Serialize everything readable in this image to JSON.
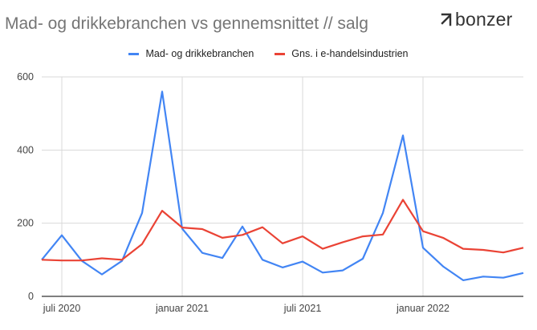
{
  "header": {
    "title": "Mad- og drikkebranchen vs gennemsnittet // salg",
    "logo_text": "bonzer"
  },
  "colors": {
    "series_1": "#4285f4",
    "series_2": "#ea4335",
    "grid": "#d9d9d9",
    "axis": "#333333"
  },
  "chart_data": {
    "type": "line",
    "title": "Mad- og drikkebranchen vs gennemsnittet // salg",
    "xlabel": "",
    "ylabel": "",
    "ylim": [
      0,
      600
    ],
    "yticks": [
      0,
      200,
      400,
      600
    ],
    "ytick_labels": [
      "0",
      "200",
      "400",
      "600"
    ],
    "xticks": [
      {
        "index": 1,
        "label": "juli 2020"
      },
      {
        "index": 7,
        "label": "januar 2021"
      },
      {
        "index": 13,
        "label": "juli 2021"
      },
      {
        "index": 19,
        "label": "januar 2022"
      }
    ],
    "grid": true,
    "legend_position": "top-center",
    "series": [
      {
        "name": "Mad- og drikkebranchen",
        "color": "#4285f4",
        "values": [
          100,
          167,
          97,
          60,
          97,
          228,
          560,
          185,
          119,
          105,
          191,
          100,
          79,
          95,
          65,
          71,
          103,
          228,
          440,
          133,
          82,
          44,
          54,
          51,
          64
        ]
      },
      {
        "name": "Gns. i e-handelsindustrien",
        "color": "#ea4335",
        "values": [
          100,
          98,
          98,
          104,
          100,
          143,
          234,
          188,
          184,
          160,
          168,
          189,
          145,
          164,
          130,
          148,
          164,
          169,
          264,
          178,
          160,
          130,
          127,
          120,
          133
        ]
      }
    ]
  }
}
